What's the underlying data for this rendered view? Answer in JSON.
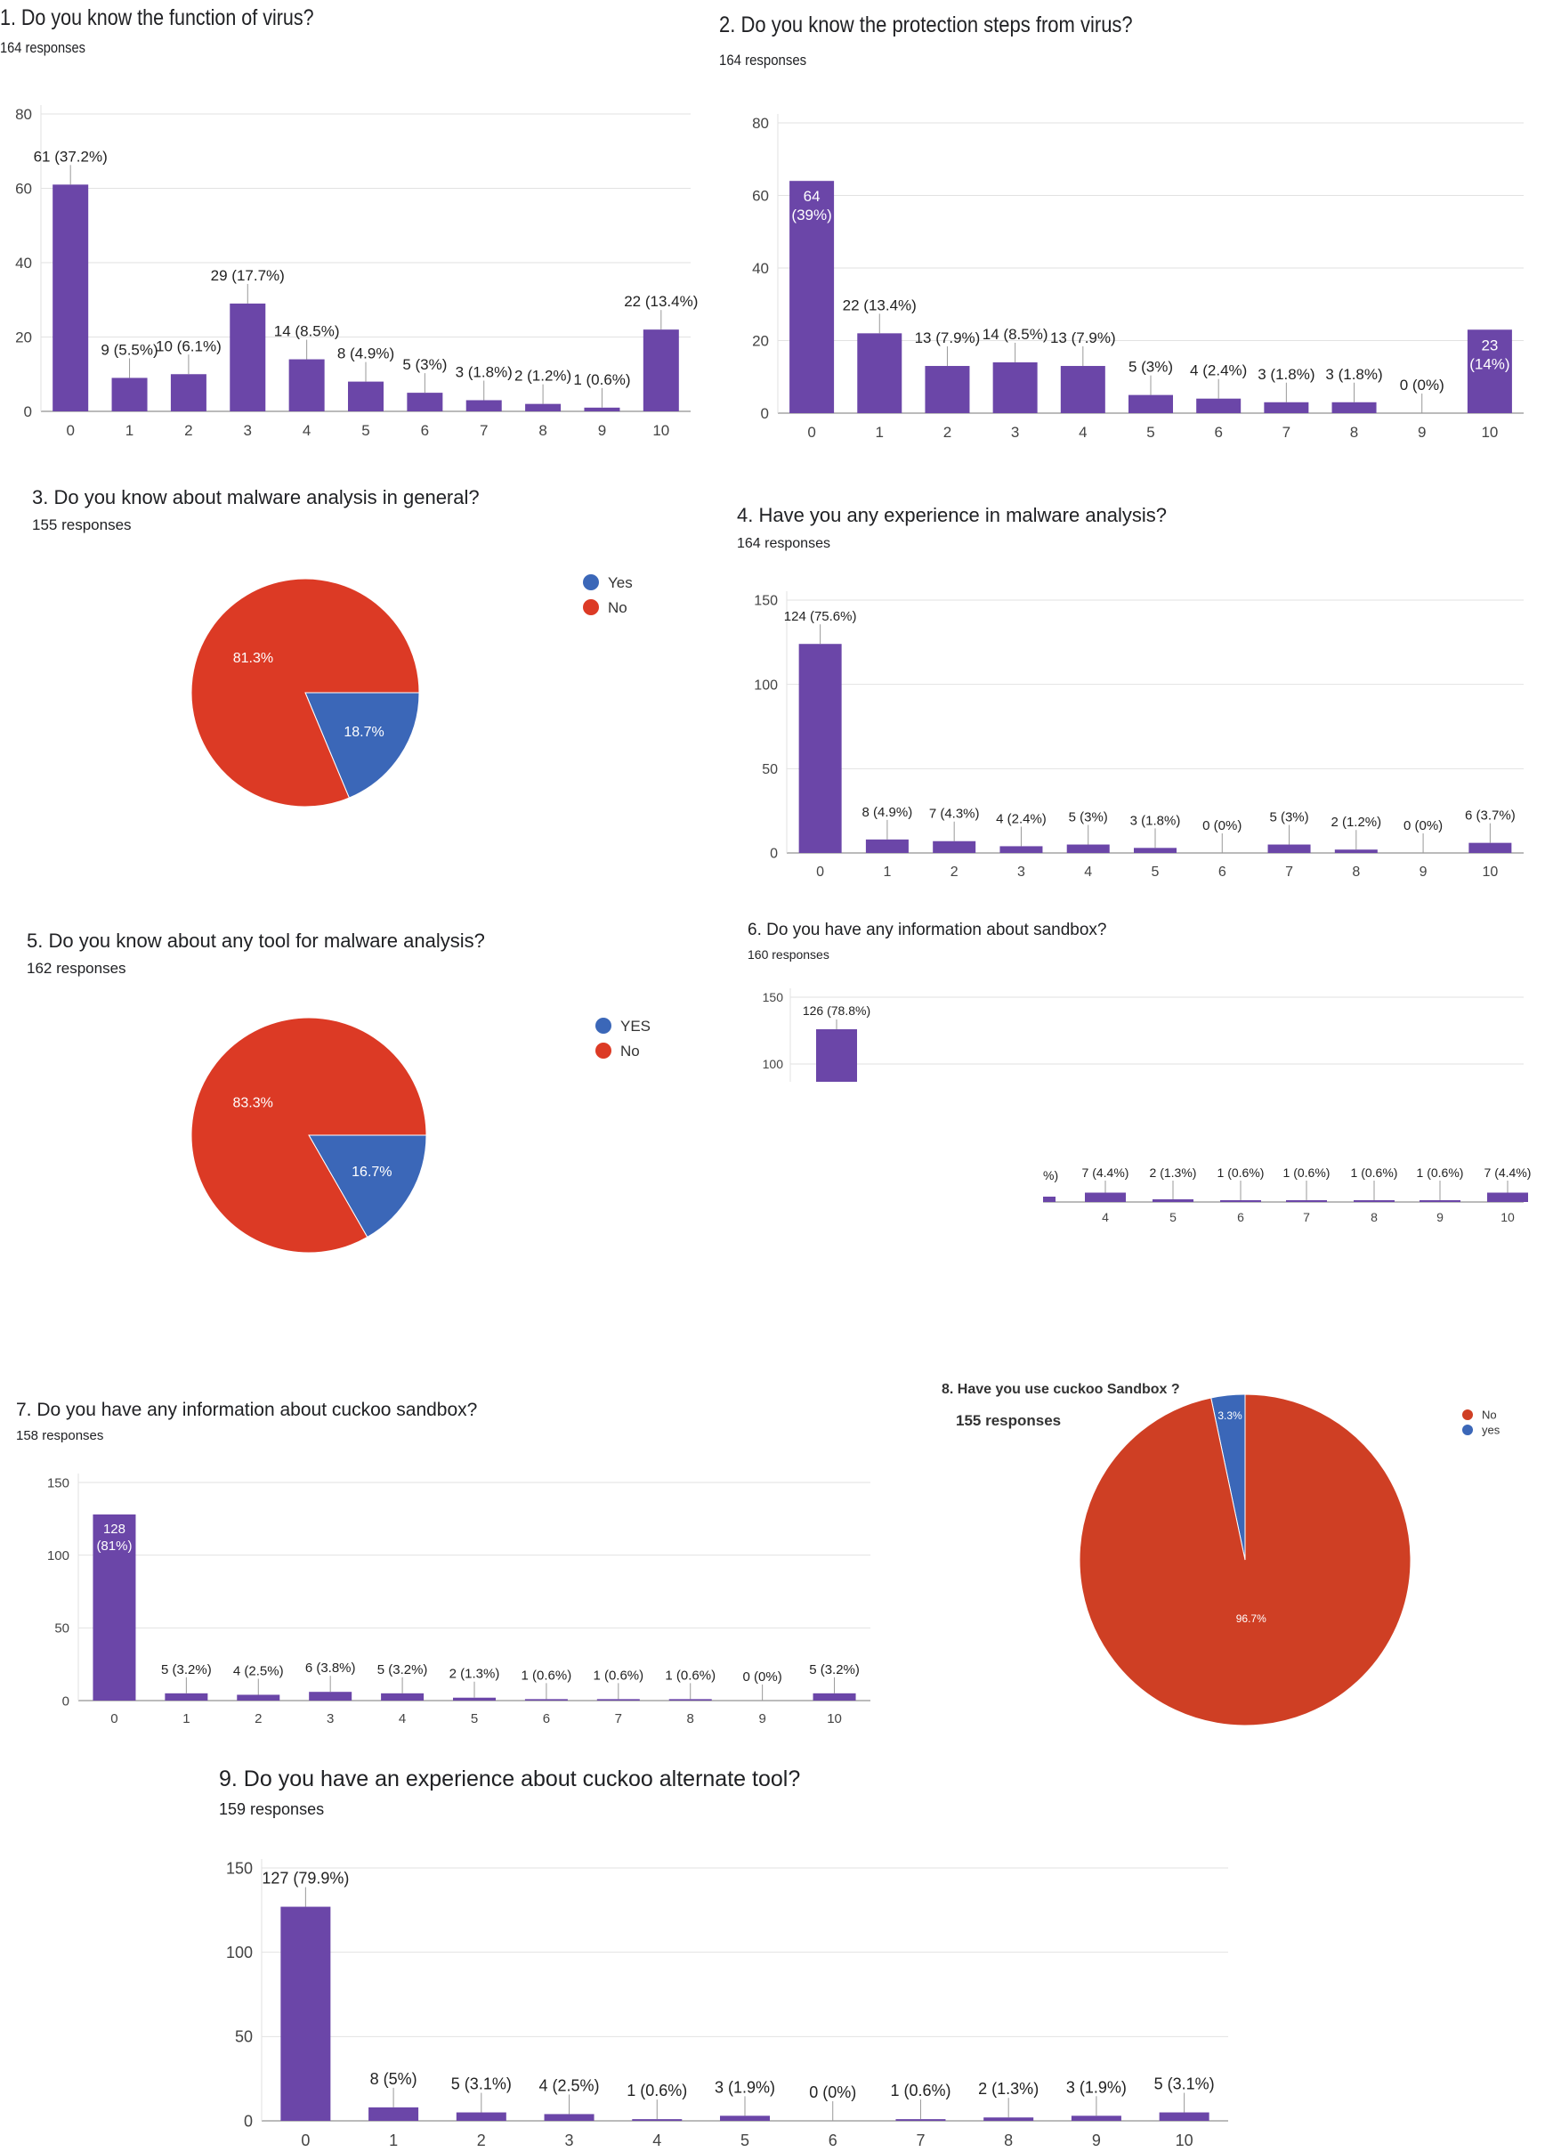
{
  "colors": {
    "bar": "#6b46a8",
    "grid": "#e2e2e2",
    "axis": "#777777",
    "pie_red": "#dc3a25",
    "pie_blue": "#3b67b8",
    "pie_red_dark": "#cf3f24"
  },
  "chart_data": [
    {
      "type": "bar",
      "title": "1. Do you know the function of virus?",
      "subtitle": "164 responses",
      "categories": [
        "0",
        "1",
        "2",
        "3",
        "4",
        "5",
        "6",
        "7",
        "8",
        "9",
        "10"
      ],
      "values": [
        61,
        9,
        10,
        29,
        14,
        8,
        5,
        3,
        2,
        1,
        22
      ],
      "labels": [
        "61 (37.2%)",
        "9 (5.5%)",
        "10 (6.1%)",
        "29 (17.7%)",
        "14 (8.5%)",
        "8 (4.9%)",
        "5 (3%)",
        "3 (1.8%)",
        "2 (1.2%)",
        "1 (0.6%)",
        "22 (13.4%)"
      ],
      "yticks": [
        "0",
        "20",
        "40",
        "60",
        "80"
      ],
      "ylim": [
        0,
        80
      ]
    },
    {
      "type": "bar",
      "title": "2. Do you know the protection steps from virus?",
      "subtitle": "164 responses",
      "categories": [
        "0",
        "1",
        "2",
        "3",
        "4",
        "5",
        "6",
        "7",
        "8",
        "9",
        "10"
      ],
      "values": [
        64,
        22,
        13,
        14,
        13,
        5,
        4,
        3,
        3,
        0,
        23
      ],
      "labels": [
        "64|(39%)",
        "22 (13.4%)",
        "13 (7.9%)",
        "14 (8.5%)",
        "13 (7.9%)",
        "5 (3%)",
        "4 (2.4%)",
        "3 (1.8%)",
        "3 (1.8%)",
        "0 (0%)",
        "23|(14%)"
      ],
      "inside": [
        true,
        false,
        false,
        false,
        false,
        false,
        false,
        false,
        false,
        false,
        true
      ],
      "yticks": [
        "0",
        "20",
        "40",
        "60",
        "80"
      ],
      "ylim": [
        0,
        80
      ]
    },
    {
      "type": "pie",
      "title": "3. Do you know about malware analysis in general?",
      "subtitle": "155 responses",
      "slices": [
        {
          "name": "Yes",
          "value": 18.7,
          "label": "18.7%"
        },
        {
          "name": "No",
          "value": 81.3,
          "label": "81.3%"
        }
      ]
    },
    {
      "type": "bar",
      "title": "4. Have you any experience in malware analysis?",
      "subtitle": "164 responses",
      "categories": [
        "0",
        "1",
        "2",
        "3",
        "4",
        "5",
        "6",
        "7",
        "8",
        "9",
        "10"
      ],
      "values": [
        124,
        8,
        7,
        4,
        5,
        3,
        0,
        5,
        2,
        0,
        6
      ],
      "labels": [
        "124 (75.6%)",
        "8 (4.9%)",
        "7 (4.3%)",
        "4 (2.4%)",
        "5 (3%)",
        "3 (1.8%)",
        "0 (0%)",
        "5 (3%)",
        "2 (1.2%)",
        "0 (0%)",
        "6 (3.7%)"
      ],
      "yticks": [
        "0",
        "50",
        "100",
        "150"
      ],
      "ylim": [
        0,
        150
      ]
    },
    {
      "type": "pie",
      "title": "5. Do you know about any tool for malware analysis?",
      "subtitle": "162 responses",
      "slices": [
        {
          "name": "YES",
          "value": 16.7,
          "label": "16.7%"
        },
        {
          "name": "No",
          "value": 83.3,
          "label": "83.3%"
        }
      ]
    },
    {
      "type": "bar",
      "title": "6. Do you have any information about sandbox?",
      "subtitle": "160 responses",
      "categories": [
        "4",
        "5",
        "6",
        "7",
        "8",
        "9",
        "10"
      ],
      "values": [
        7,
        2,
        1,
        1,
        1,
        1,
        7
      ],
      "labels": [
        "7 (4.4%)",
        "2 (1.3%)",
        "1 (0.6%)",
        "1 (0.6%)",
        "1 (0.6%)",
        "1 (0.6%)",
        "7 (4.4%)"
      ],
      "first_bar": {
        "value": 126,
        "label": "126 (78.8%)"
      },
      "partial_label": "%)",
      "yticks": [
        "100",
        "150"
      ],
      "ylim": [
        0,
        150
      ]
    },
    {
      "type": "bar",
      "title": "7. Do you have any information about cuckoo sandbox?",
      "subtitle": "158 responses",
      "categories": [
        "0",
        "1",
        "2",
        "3",
        "4",
        "5",
        "6",
        "7",
        "8",
        "9",
        "10"
      ],
      "values": [
        128,
        5,
        4,
        6,
        5,
        2,
        1,
        1,
        1,
        0,
        5
      ],
      "labels": [
        "128|(81%)",
        "5 (3.2%)",
        "4 (2.5%)",
        "6 (3.8%)",
        "5 (3.2%)",
        "2 (1.3%)",
        "1 (0.6%)",
        "1 (0.6%)",
        "1 (0.6%)",
        "0 (0%)",
        "5 (3.2%)"
      ],
      "inside": [
        true,
        false,
        false,
        false,
        false,
        false,
        false,
        false,
        false,
        false,
        false
      ],
      "yticks": [
        "0",
        "50",
        "100",
        "150"
      ],
      "ylim": [
        0,
        150
      ]
    },
    {
      "type": "pie",
      "title": "8. Have you use cuckoo Sandbox ?",
      "subtitle": "155 responses",
      "slices": [
        {
          "name": "yes",
          "value": 3.3,
          "label": "3.3%"
        },
        {
          "name": "No",
          "value": 96.7,
          "label": "96.7%"
        }
      ]
    },
    {
      "type": "bar",
      "title": "9. Do you have an experience about cuckoo alternate tool?",
      "subtitle": "159 responses",
      "categories": [
        "0",
        "1",
        "2",
        "3",
        "4",
        "5",
        "6",
        "7",
        "8",
        "9",
        "10"
      ],
      "values": [
        127,
        8,
        5,
        4,
        1,
        3,
        0,
        1,
        2,
        3,
        5
      ],
      "labels": [
        "127 (79.9%)",
        "8 (5%)",
        "5 (3.1%)",
        "4 (2.5%)",
        "1 (0.6%)",
        "3 (1.9%)",
        "0 (0%)",
        "1 (0.6%)",
        "2 (1.3%)",
        "3 (1.9%)",
        "5 (3.1%)"
      ],
      "yticks": [
        "0",
        "50",
        "100",
        "150"
      ],
      "ylim": [
        0,
        150
      ]
    }
  ]
}
